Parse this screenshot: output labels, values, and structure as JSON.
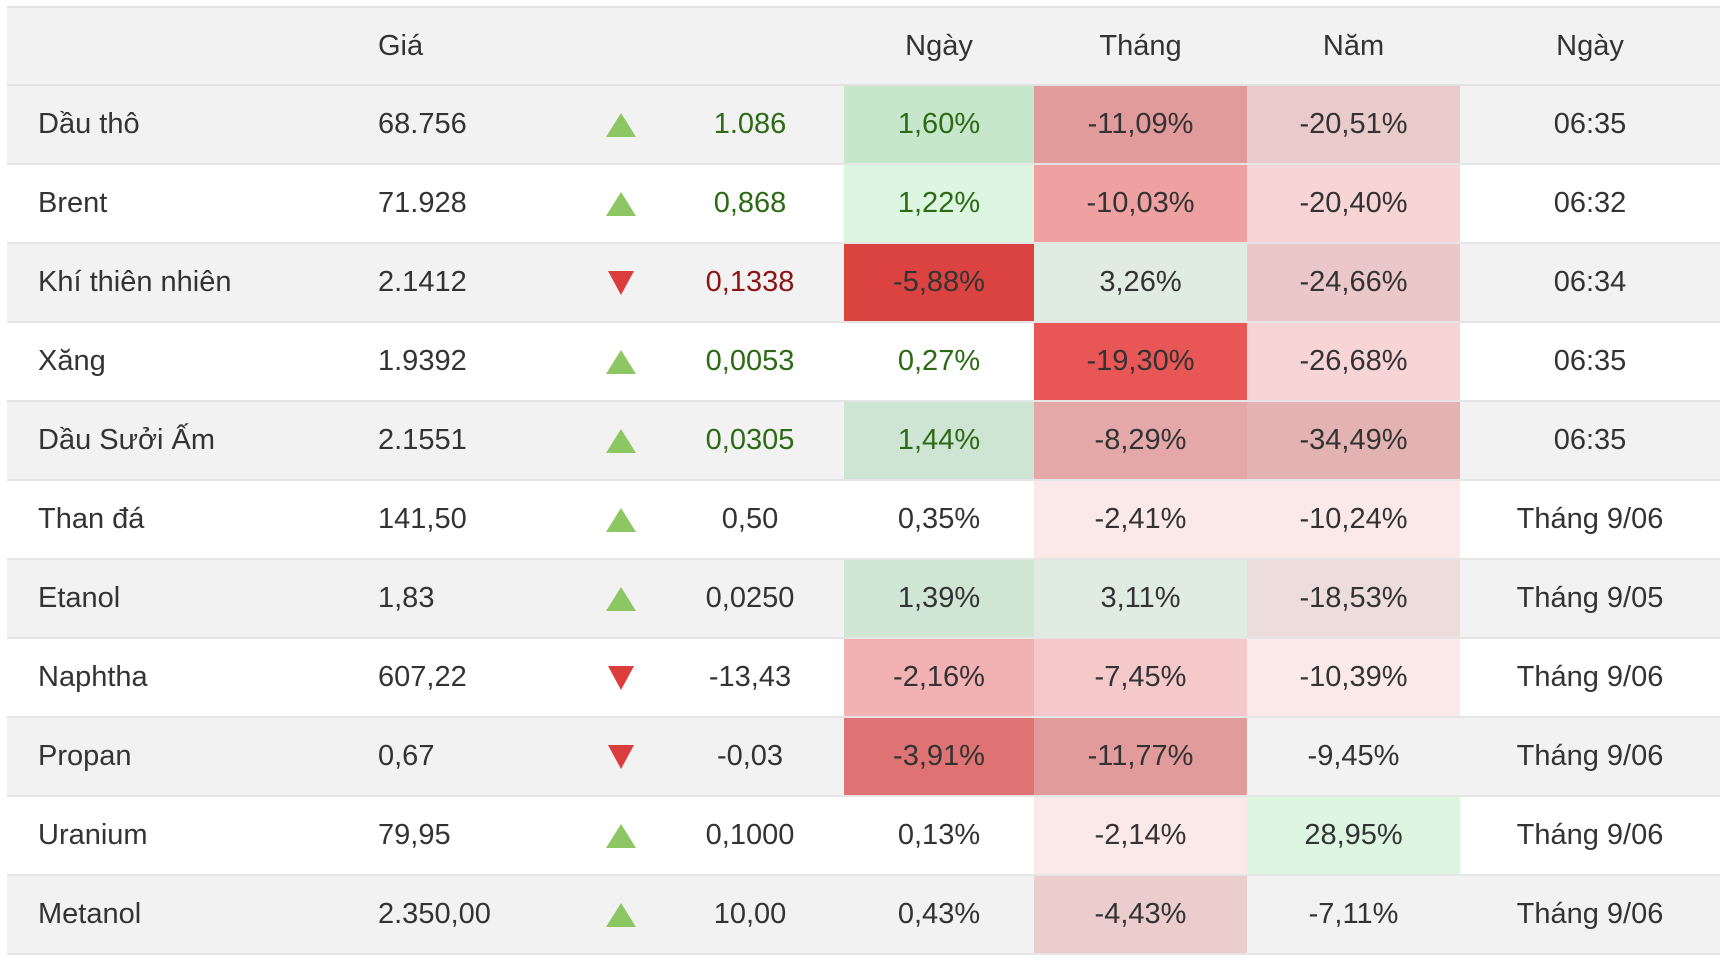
{
  "colors": {
    "up_arrow": "#8cc763",
    "down_arrow": "#db3c3c",
    "positive_text": "#2d6a15",
    "negative_text": "#8b1414"
  },
  "headers": {
    "name": "",
    "price": "Giá",
    "arrow": "",
    "change": "",
    "day": "Ngày",
    "month": "Tháng",
    "year": "Năm",
    "time": "Ngày"
  },
  "rows": [
    {
      "name": "Dầu thô",
      "price": "68.756",
      "direction": "up",
      "change": "1.086",
      "change_tone": "pos",
      "day": "1,60%",
      "day_tone": "pos",
      "day_bg": "#c6e7cb",
      "month": "-11,09%",
      "month_bg": "#e29b9b",
      "year": "-20,51%",
      "year_bg": "#eacbcc",
      "time": "06:35"
    },
    {
      "name": "Brent",
      "price": "71.928",
      "direction": "up",
      "change": "0,868",
      "change_tone": "pos",
      "day": "1,22%",
      "day_tone": "pos",
      "day_bg": "#dcf6e1",
      "month": "-10,03%",
      "month_bg": "#efa1a2",
      "year": "-20,40%",
      "year_bg": "#f7d4d5",
      "time": "06:32"
    },
    {
      "name": "Khí thiên nhiên",
      "price": "2.1412",
      "direction": "down",
      "change": "0,1338",
      "change_tone": "neg",
      "day": "-5,88%",
      "day_tone": "neg",
      "day_bg": "#da433f",
      "month": "3,26%",
      "month_bg": "#e0ebe2",
      "year": "-24,66%",
      "year_bg": "#eac8c9",
      "time": "06:34"
    },
    {
      "name": "Xăng",
      "price": "1.9392",
      "direction": "up",
      "change": "0,0053",
      "change_tone": "pos",
      "day": "0,27%",
      "day_tone": "pos",
      "day_bg": "",
      "month": "-19,30%",
      "month_bg": "#e85656",
      "year": "-26,68%",
      "year_bg": "#f7d4d5",
      "time": "06:35"
    },
    {
      "name": "Dầu Sưởi Ấm",
      "price": "2.1551",
      "direction": "up",
      "change": "0,0305",
      "change_tone": "pos",
      "day": "1,44%",
      "day_tone": "pos",
      "day_bg": "#cfe5d4",
      "month": "-8,29%",
      "month_bg": "#e4a8a9",
      "year": "-34,49%",
      "year_bg": "#e3b2b3",
      "time": "06:35"
    },
    {
      "name": "Than đá",
      "price": "141,50",
      "direction": "up",
      "change": "0,50",
      "change_tone": "",
      "day": "0,35%",
      "day_tone": "",
      "day_bg": "",
      "month": "-2,41%",
      "month_bg": "#fbe9e9",
      "year": "-10,24%",
      "year_bg": "#fbe9e9",
      "time": "Tháng 9/06"
    },
    {
      "name": "Etanol",
      "price": "1,83",
      "direction": "up",
      "change": "0,0250",
      "change_tone": "",
      "day": "1,39%",
      "day_tone": "",
      "day_bg": "#d0e6d5",
      "month": "3,11%",
      "month_bg": "#e0ebe2",
      "year": "-18,53%",
      "year_bg": "#ecdcdc",
      "time": "Tháng 9/05"
    },
    {
      "name": "Naphtha",
      "price": "607,22",
      "direction": "down",
      "change": "-13,43",
      "change_tone": "",
      "day": "-2,16%",
      "day_tone": "",
      "day_bg": "#f2b2b3",
      "month": "-7,45%",
      "month_bg": "#f5c9ca",
      "year": "-10,39%",
      "year_bg": "#fbe9e9",
      "time": "Tháng 9/06"
    },
    {
      "name": "Propan",
      "price": "0,67",
      "direction": "down",
      "change": "-0,03",
      "change_tone": "",
      "day": "-3,91%",
      "day_tone": "",
      "day_bg": "#df7272",
      "month": "-11,77%",
      "month_bg": "#e29b9b",
      "year": "-9,45%",
      "year_bg": "",
      "time": "Tháng 9/06"
    },
    {
      "name": "Uranium",
      "price": "79,95",
      "direction": "up",
      "change": "0,1000",
      "change_tone": "",
      "day": "0,13%",
      "day_tone": "",
      "day_bg": "",
      "month": "-2,14%",
      "month_bg": "#fbe9e9",
      "year": "28,95%",
      "year_bg": "#dcf6e1",
      "time": "Tháng 9/06"
    },
    {
      "name": "Metanol",
      "price": "2.350,00",
      "direction": "up",
      "change": "10,00",
      "change_tone": "",
      "day": "0,43%",
      "day_tone": "",
      "day_bg": "",
      "month": "-4,43%",
      "month_bg": "#ebcdce",
      "year": "-7,11%",
      "year_bg": "",
      "time": "Tháng 9/06"
    }
  ]
}
